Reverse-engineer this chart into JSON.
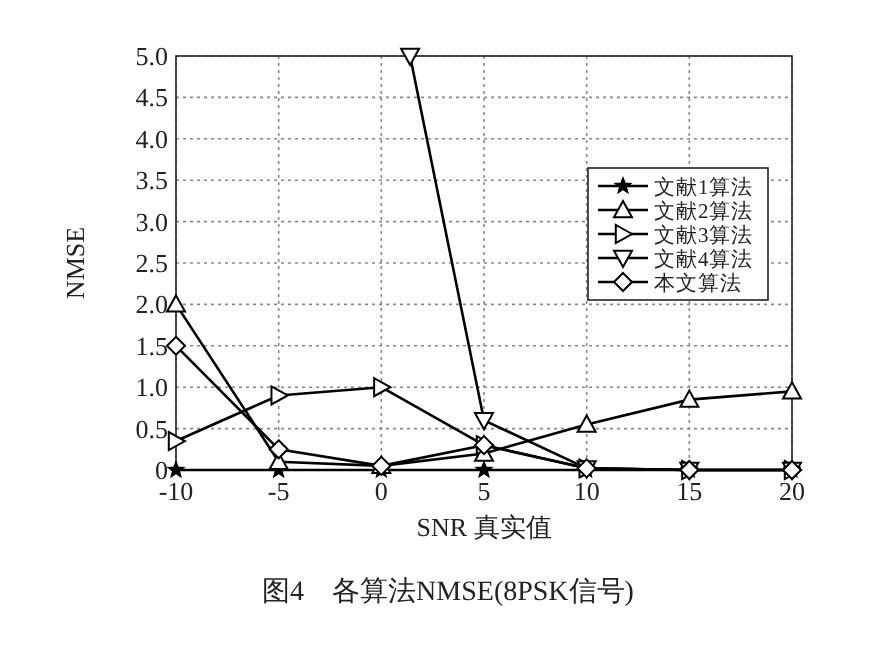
{
  "chart_data": {
    "type": "line",
    "xlabel": "SNR 真实值",
    "ylabel": "NMSE",
    "annotations": [
      "图4　各算法NMSE(8PSK信号)"
    ],
    "x": [
      -10,
      -5,
      0,
      5,
      10,
      15,
      20
    ],
    "xlim": [
      -10,
      20
    ],
    "xticks": [
      -10,
      -5,
      0,
      5,
      10,
      15,
      20
    ],
    "ylim": [
      0,
      5
    ],
    "yticks": [
      0,
      0.5,
      {
        "value": 1,
        "label": "1.0"
      },
      1.5,
      {
        "value": 2,
        "label": "2.0"
      },
      2.5,
      {
        "value": 3,
        "label": "3.0"
      },
      3.5,
      {
        "value": 4,
        "label": "4.0"
      },
      4.5,
      {
        "value": 5,
        "label": "5.0"
      }
    ],
    "grid": true,
    "legend": "right",
    "line_style": "solid",
    "series": [
      {
        "name": "文献1算法",
        "color": "#000000",
        "marker": "star",
        "values": [
          0,
          0,
          0,
          0,
          0,
          0,
          0
        ]
      },
      {
        "name": "文献2算法",
        "color": "#000000",
        "marker": "triangle",
        "values": [
          2.0,
          0.1,
          0.05,
          0.2,
          0.55,
          0.85,
          0.95
        ]
      },
      {
        "name": "文献3算法",
        "color": "#000000",
        "marker": "triangle-right",
        "values": [
          0.35,
          0.9,
          1.0,
          0.3,
          0.02,
          0,
          0
        ]
      },
      {
        "name": "文献4算法",
        "color": "#000000",
        "marker": "triangle-down",
        "x": [
          1.4,
          5,
          10,
          15,
          20
        ],
        "values": [
          5.0,
          0.6,
          0.02,
          0,
          0
        ]
      },
      {
        "name": "本文算法",
        "color": "#000000",
        "marker": "diamond",
        "values": [
          1.5,
          0.25,
          0.05,
          0.3,
          0.02,
          0,
          0
        ]
      }
    ]
  }
}
